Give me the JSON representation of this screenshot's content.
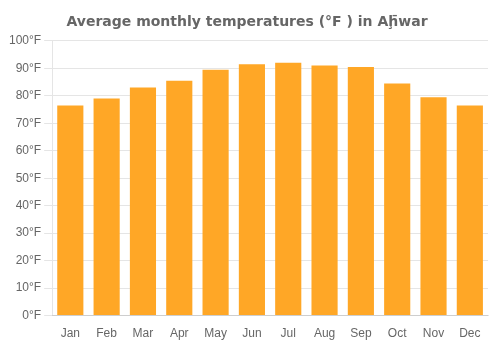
{
  "chart_data": {
    "type": "bar",
    "title": "Average monthly temperatures (°F ) in Aḩ̄war",
    "categories": [
      "Jan",
      "Feb",
      "Mar",
      "Apr",
      "May",
      "Jun",
      "Jul",
      "Aug",
      "Sep",
      "Oct",
      "Nov",
      "Dec"
    ],
    "values": [
      76.5,
      79,
      83,
      85.5,
      89.5,
      91.5,
      92,
      91,
      90.5,
      84.5,
      79.5,
      76.5
    ],
    "color": "#FFA726",
    "ylim": [
      0,
      100
    ],
    "yticks": [
      {
        "value": 0,
        "label": "0°F"
      },
      {
        "value": 10,
        "label": "10°F"
      },
      {
        "value": 20,
        "label": "20°F"
      },
      {
        "value": 30,
        "label": "30°F"
      },
      {
        "value": 40,
        "label": "40°F"
      },
      {
        "value": 50,
        "label": "50°F"
      },
      {
        "value": 60,
        "label": "60°F"
      },
      {
        "value": 70,
        "label": "70°F"
      },
      {
        "value": 80,
        "label": "80°F"
      },
      {
        "value": 90,
        "label": "90°F"
      },
      {
        "value": 100,
        "label": "100°F"
      }
    ],
    "grid": true
  }
}
